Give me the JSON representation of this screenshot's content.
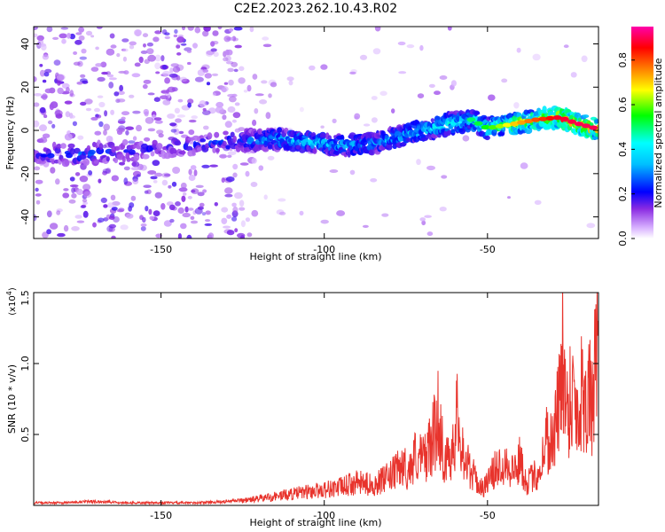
{
  "title": "C2E2.2023.262.10.43.R02",
  "colors": {
    "snr_line": "#e8332c",
    "axis": "#000000",
    "colormap": [
      "#ffffff",
      "#8a2be2",
      "#0000ff",
      "#00e5ff",
      "#00ff00",
      "#ffff00",
      "#ff8000",
      "#ff0000",
      "#ff00aa"
    ]
  },
  "chart_data": [
    {
      "type": "heatmap",
      "xlabel": "Height of straight line (km)",
      "ylabel": "Frequency (Hz)",
      "xlim": [
        -189,
        -16
      ],
      "ylim": [
        -50,
        48
      ],
      "xticks": [
        -150,
        -100,
        -50
      ],
      "yticks": [
        -40,
        -20,
        0,
        20,
        40
      ],
      "colorbar": {
        "label": "Normalized spectral amplitude",
        "range": [
          0.0,
          0.95
        ],
        "ticks": [
          0.0,
          0.2,
          0.4,
          0.6,
          0.8
        ]
      },
      "ridge": [
        {
          "x": -189,
          "y": -11,
          "amp": 0.22
        },
        {
          "x": -175,
          "y": -11,
          "amp": 0.3
        },
        {
          "x": -165,
          "y": -10,
          "amp": 0.25
        },
        {
          "x": -150,
          "y": -8,
          "amp": 0.2
        },
        {
          "x": -125,
          "y": -5,
          "amp": 0.3
        },
        {
          "x": -115,
          "y": -4,
          "amp": 0.4
        },
        {
          "x": -105,
          "y": -5,
          "amp": 0.42
        },
        {
          "x": -95,
          "y": -7,
          "amp": 0.4
        },
        {
          "x": -85,
          "y": -6,
          "amp": 0.38
        },
        {
          "x": -75,
          "y": -2,
          "amp": 0.42
        },
        {
          "x": -65,
          "y": 2,
          "amp": 0.45
        },
        {
          "x": -55,
          "y": 5,
          "amp": 0.5
        },
        {
          "x": -50,
          "y": 1,
          "amp": 0.55
        },
        {
          "x": -42,
          "y": 3,
          "amp": 0.7
        },
        {
          "x": -35,
          "y": 5,
          "amp": 0.8
        },
        {
          "x": -28,
          "y": 6,
          "amp": 0.88
        },
        {
          "x": -22,
          "y": 3,
          "amp": 0.9
        },
        {
          "x": -17,
          "y": 1,
          "amp": 0.9
        }
      ]
    },
    {
      "type": "line",
      "xlabel": "Height of straight line (km)",
      "ylabel": "SNR (10 * v/v)",
      "exponent_label": "(x10",
      "exponent_power": "4",
      "xlim": [
        -189,
        -16
      ],
      "ylim": [
        0,
        1.5
      ],
      "xticks": [
        -150,
        -100,
        -50
      ],
      "yticks": [
        0.5,
        1.0,
        1.5
      ],
      "series": [
        {
          "values_note_free": true,
          "x": [
            -189,
            -180,
            -170,
            -160,
            -150,
            -140,
            -130,
            -125,
            -120,
            -115,
            -110,
            -105,
            -100,
            -95,
            -90,
            -85,
            -80,
            -76,
            -74,
            -72,
            -70,
            -67,
            -65,
            -63,
            -61,
            -59,
            -57,
            -55,
            -52,
            -50,
            -48,
            -45,
            -42,
            -40,
            -38,
            -36,
            -34,
            -32,
            -30,
            -29,
            -28,
            -27,
            -26,
            -25,
            -24,
            -23,
            -22,
            -21,
            -20,
            -19,
            -18,
            -17,
            -16
          ],
          "y": [
            0.02,
            0.02,
            0.03,
            0.02,
            0.02,
            0.02,
            0.03,
            0.04,
            0.06,
            0.08,
            0.1,
            0.12,
            0.14,
            0.16,
            0.2,
            0.18,
            0.25,
            0.35,
            0.3,
            0.45,
            0.4,
            0.55,
            0.8,
            0.35,
            0.5,
            0.8,
            0.4,
            0.3,
            0.15,
            0.2,
            0.3,
            0.4,
            0.3,
            0.4,
            0.2,
            0.25,
            0.3,
            0.6,
            0.55,
            0.75,
            0.9,
            1.5,
            0.8,
            0.95,
            1.0,
            0.9,
            0.75,
            1.1,
            0.9,
            1.05,
            0.8,
            1.2,
            1.25
          ]
        }
      ]
    }
  ]
}
